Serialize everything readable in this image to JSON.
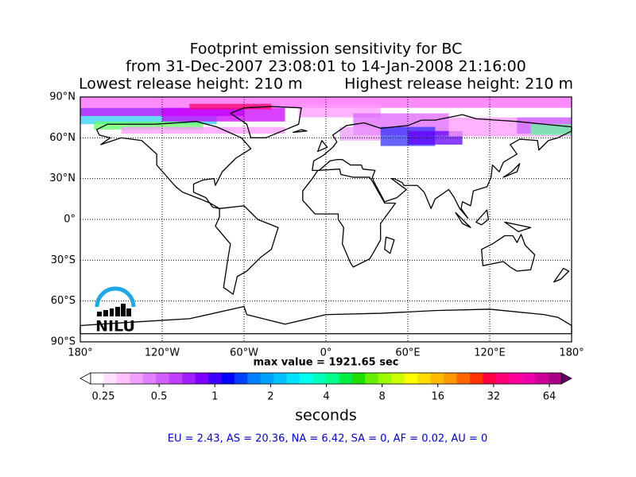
{
  "title": [
    "Footprint emission sensitivity for BC",
    "from 31-Dec-2007 23:08:01 to 14-Jan-2008 21:16:00"
  ],
  "release": {
    "lowest": "Lowest release height: 210 m",
    "highest": "Highest release height: 210 m"
  },
  "map": {
    "lat_labels": [
      "90°N",
      "60°N",
      "30°N",
      "0°",
      "30°S",
      "60°S",
      "90°S"
    ],
    "lon_labels": [
      "180°",
      "120°W",
      "60°W",
      "0°",
      "60°E",
      "120°E",
      "180°"
    ],
    "logo": "NILU"
  },
  "max_value": "max value = 1921.65 sec",
  "colorbar": {
    "ticks": [
      "0.25",
      "0.5",
      "1",
      "2",
      "4",
      "8",
      "16",
      "32",
      "64"
    ],
    "label": "seconds"
  },
  "footer": "EU = 2.43,  AS = 20.36,  NA = 6.42,  SA = 0,  AF = 0.02,  AU = 0"
}
